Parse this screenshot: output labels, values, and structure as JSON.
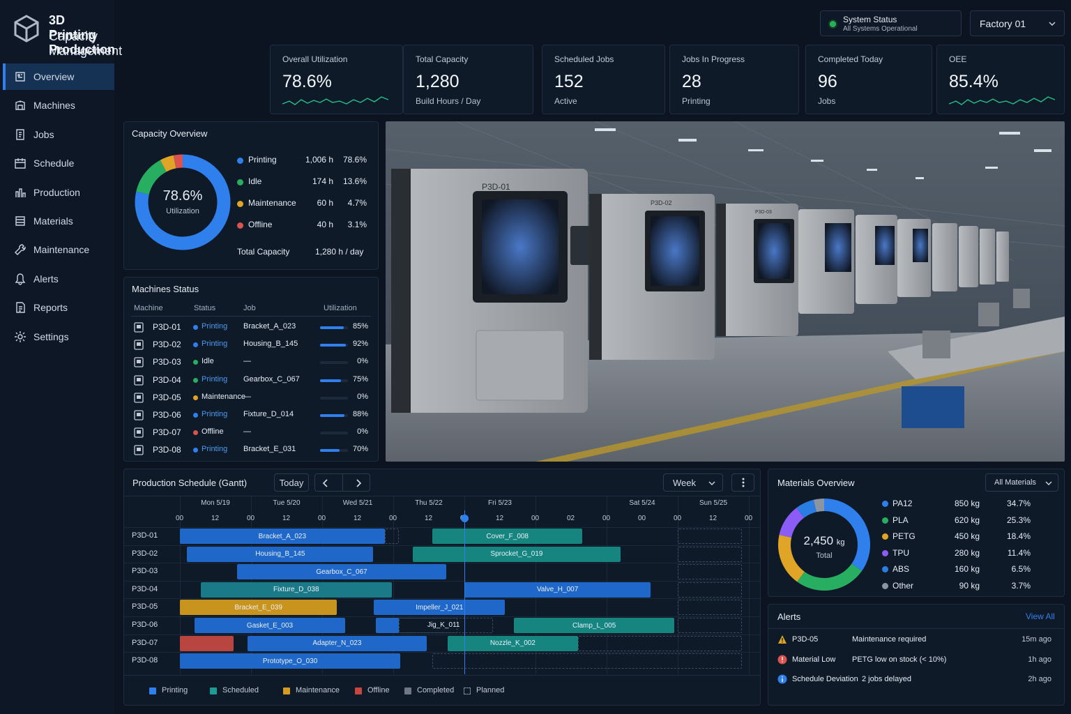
{
  "app": {
    "title_line1": "3D Printing Production",
    "title_line2": "Capacity Management"
  },
  "sidebar": {
    "items": [
      {
        "label": "Overview",
        "icon": "overview-icon",
        "active": true
      },
      {
        "label": "Machines",
        "icon": "machine-icon"
      },
      {
        "label": "Jobs",
        "icon": "jobs-icon"
      },
      {
        "label": "Schedule",
        "icon": "calendar-icon"
      },
      {
        "label": "Production",
        "icon": "production-icon"
      },
      {
        "label": "Materials",
        "icon": "materials-icon"
      },
      {
        "label": "Maintenance",
        "icon": "wrench-icon"
      },
      {
        "label": "Alerts",
        "icon": "bell-icon"
      },
      {
        "label": "Reports",
        "icon": "report-icon"
      },
      {
        "label": "Settings",
        "icon": "gear-icon"
      }
    ]
  },
  "header": {
    "system_status_title": "System Status",
    "system_status_text": "All Systems Operational",
    "factory": "Factory 01"
  },
  "kpis": [
    {
      "title": "Overall Utilization",
      "value": "78.6%",
      "sub": ""
    },
    {
      "title": "Total Capacity",
      "value": "1,280",
      "sub": "Build Hours / Day"
    },
    {
      "title": "Scheduled Jobs",
      "value": "152",
      "sub": "Active"
    },
    {
      "title": "Jobs In Progress",
      "value": "28",
      "sub": "Printing"
    },
    {
      "title": "Completed Today",
      "value": "96",
      "sub": "Jobs"
    },
    {
      "title": "OEE",
      "value": "85.4%",
      "sub": ""
    }
  ],
  "capacity": {
    "title": "Capacity Overview",
    "center_value": "78.6%",
    "center_label": "Utilization",
    "items": [
      {
        "label": "Printing",
        "hours": "1,006 h",
        "pct": "78.6%",
        "value": 78.6,
        "color": "#2f80ed"
      },
      {
        "label": "Idle",
        "hours": "174 h",
        "pct": "13.6%",
        "value": 13.6,
        "color": "#27ae60"
      },
      {
        "label": "Maintenance",
        "hours": "60 h",
        "pct": "4.7%",
        "value": 4.7,
        "color": "#e0a526"
      },
      {
        "label": "Offline",
        "hours": "40 h",
        "pct": "3.1%",
        "value": 3.1,
        "color": "#d9534f"
      }
    ],
    "total_label": "Total Capacity",
    "total_value": "1,280 h / day"
  },
  "machines": {
    "title": "Machines Status",
    "headers": [
      "Machine",
      "Status",
      "Job",
      "Utilization"
    ],
    "rows": [
      {
        "machine": "P3D-01",
        "status": "Printing",
        "status_color": "#2f80ed",
        "job": "Bracket_A_023",
        "util": "85%",
        "util_value": 85
      },
      {
        "machine": "P3D-02",
        "status": "Printing",
        "status_color": "#2f80ed",
        "job": "Housing_B_145",
        "util": "92%",
        "util_value": 92
      },
      {
        "machine": "P3D-03",
        "status": "Idle",
        "status_color": "#27ae60",
        "job": "—",
        "util": "0%",
        "util_value": 0
      },
      {
        "machine": "P3D-04",
        "status": "Printing",
        "status_color": "#27ae60",
        "job": "Gearbox_C_067",
        "util": "75%",
        "util_value": 75
      },
      {
        "machine": "P3D-05",
        "status": "Maintenance",
        "status_color": "#e0a526",
        "job": "—",
        "util": "0%",
        "util_value": 0
      },
      {
        "machine": "P3D-06",
        "status": "Printing",
        "status_color": "#2f80ed",
        "job": "Fixture_D_014",
        "util": "88%",
        "util_value": 88
      },
      {
        "machine": "P3D-07",
        "status": "Offline",
        "status_color": "#d9534f",
        "job": "—",
        "util": "0%",
        "util_value": 0
      },
      {
        "machine": "P3D-08",
        "status": "Printing",
        "status_color": "#2f80ed",
        "job": "Bracket_E_031",
        "util": "70%",
        "util_value": 70
      }
    ]
  },
  "photo": {
    "machine_labels": [
      "P3D-01",
      "P3D-02",
      "P3D-03"
    ]
  },
  "gantt": {
    "title": "Production Schedule (Gantt)",
    "today_button": "Today",
    "range": "Week",
    "days": [
      "Mon 5/19",
      "Tue 5/20",
      "Wed 5/21",
      "Thu 5/22",
      "Fri 5/23",
      "Sat 5/24",
      "Sun 5/25"
    ],
    "hours": [
      "00",
      "12",
      "00",
      "12",
      "00",
      "12",
      "00",
      "12",
      "00",
      "12",
      "00",
      "02",
      "00",
      "00",
      "00",
      "12",
      "00"
    ],
    "machines": [
      "P3D-01",
      "P3D-02",
      "P3D-03",
      "P3D-04",
      "P3D-05",
      "P3D-06",
      "P3D-07",
      "P3D-08"
    ],
    "bars": [
      {
        "row": 0,
        "start": 0,
        "end": 2.88,
        "label": "Bracket_A_023",
        "type": "printing"
      },
      {
        "row": 0,
        "start": 3.55,
        "end": 5.66,
        "label": "Cover_F_008",
        "type": "scheduled"
      },
      {
        "row": 1,
        "start": 0.1,
        "end": 2.72,
        "label": "Housing_B_145",
        "type": "printing"
      },
      {
        "row": 1,
        "start": 3.27,
        "end": 6.2,
        "label": "Sprocket_G_019",
        "type": "scheduled"
      },
      {
        "row": 2,
        "start": 0.8,
        "end": 3.75,
        "label": "Gearbox_C_067",
        "type": "printing"
      },
      {
        "row": 3,
        "start": 0.29,
        "end": 2.98,
        "label": "Fixture_D_038",
        "type": "scheduled_light"
      },
      {
        "row": 3,
        "start": 4.0,
        "end": 6.62,
        "label": "Valve_H_007",
        "type": "printing"
      },
      {
        "row": 4,
        "start": 0,
        "end": 2.21,
        "label": "Bracket_E_039",
        "type": "maintenance"
      },
      {
        "row": 4,
        "start": 2.73,
        "end": 4.57,
        "label": "Impeller_J_021",
        "type": "printing"
      },
      {
        "row": 5,
        "start": 0.21,
        "end": 2.32,
        "label": "Gasket_E_003",
        "type": "printing"
      },
      {
        "row": 5,
        "start": 2.75,
        "end": 3.08,
        "label": "",
        "type": "printing"
      },
      {
        "row": 5,
        "start": 4.7,
        "end": 6.95,
        "label": "Clamp_L_005",
        "type": "scheduled"
      },
      {
        "row": 6,
        "start": 0,
        "end": 0.75,
        "label": "",
        "type": "offline"
      },
      {
        "row": 6,
        "start": 0.95,
        "end": 3.47,
        "label": "Adapter_N_023",
        "type": "printing"
      },
      {
        "row": 6,
        "start": 3.76,
        "end": 5.6,
        "label": "Nozzle_K_002",
        "type": "scheduled"
      },
      {
        "row": 7,
        "start": 0,
        "end": 3.1,
        "label": "Prototype_O_030",
        "type": "printing"
      }
    ],
    "planned": [
      {
        "row": 0,
        "start": 2.88,
        "end": 3.08
      },
      {
        "row": 0,
        "start": 7.0,
        "end": 7.9
      },
      {
        "row": 1,
        "start": 7.0,
        "end": 7.9
      },
      {
        "row": 2,
        "start": 7.0,
        "end": 7.9
      },
      {
        "row": 3,
        "start": 7.0,
        "end": 7.9
      },
      {
        "row": 4,
        "start": 7.0,
        "end": 7.9
      },
      {
        "row": 5,
        "start": 3.08,
        "end": 4.4
      },
      {
        "row": 5,
        "start": 2.95,
        "end": 3.9
      },
      {
        "row": 5,
        "start": 7.0,
        "end": 7.9
      },
      {
        "row": 6,
        "start": 5.6,
        "end": 7.9
      },
      {
        "row": 7,
        "start": 3.55,
        "end": 7.9
      }
    ],
    "jig_label": "Jig_K_011",
    "legend": [
      {
        "label": "Printing",
        "color": "#2f80ed"
      },
      {
        "label": "Scheduled",
        "color": "#1a9c93"
      },
      {
        "label": "Maintenance",
        "color": "#d59b22"
      },
      {
        "label": "Offline",
        "color": "#c9463f"
      },
      {
        "label": "Completed",
        "color": "#6e7785"
      },
      {
        "label": "Planned",
        "color": "dashed"
      }
    ]
  },
  "materials": {
    "title": "Materials Overview",
    "filter": "All Materials",
    "center_value": "2,450",
    "center_unit": "kg",
    "center_label": "Total",
    "items": [
      {
        "label": "PA12",
        "kg": "850 kg",
        "pct": "34.7%",
        "value": 34.7,
        "color": "#2f80ed"
      },
      {
        "label": "PLA",
        "kg": "620 kg",
        "pct": "25.3%",
        "value": 25.3,
        "color": "#27ae60"
      },
      {
        "label": "PETG",
        "kg": "450 kg",
        "pct": "18.4%",
        "value": 18.4,
        "color": "#e0a526"
      },
      {
        "label": "TPU",
        "kg": "280 kg",
        "pct": "11.4%",
        "value": 11.4,
        "color": "#8b5cf6"
      },
      {
        "label": "ABS",
        "kg": "160 kg",
        "pct": "6.5%",
        "value": 6.5,
        "color": "#2a7de1"
      },
      {
        "label": "Other",
        "kg": "90 kg",
        "pct": "3.7%",
        "value": 3.7,
        "color": "#8a94a3"
      }
    ]
  },
  "alerts": {
    "title": "Alerts",
    "view_all": "View All",
    "items": [
      {
        "icon": "warning-icon",
        "color": "#e0a526",
        "source": "P3D-05",
        "message": "Maintenance required",
        "time": "15m ago"
      },
      {
        "icon": "error-icon",
        "color": "#d9534f",
        "source": "Material Low",
        "message": "PETG low on stock (< 10%)",
        "time": "1h ago"
      },
      {
        "icon": "info-icon",
        "color": "#2f80ed",
        "source": "Schedule Deviation",
        "message": "2 jobs delayed",
        "time": "2h ago"
      }
    ]
  }
}
